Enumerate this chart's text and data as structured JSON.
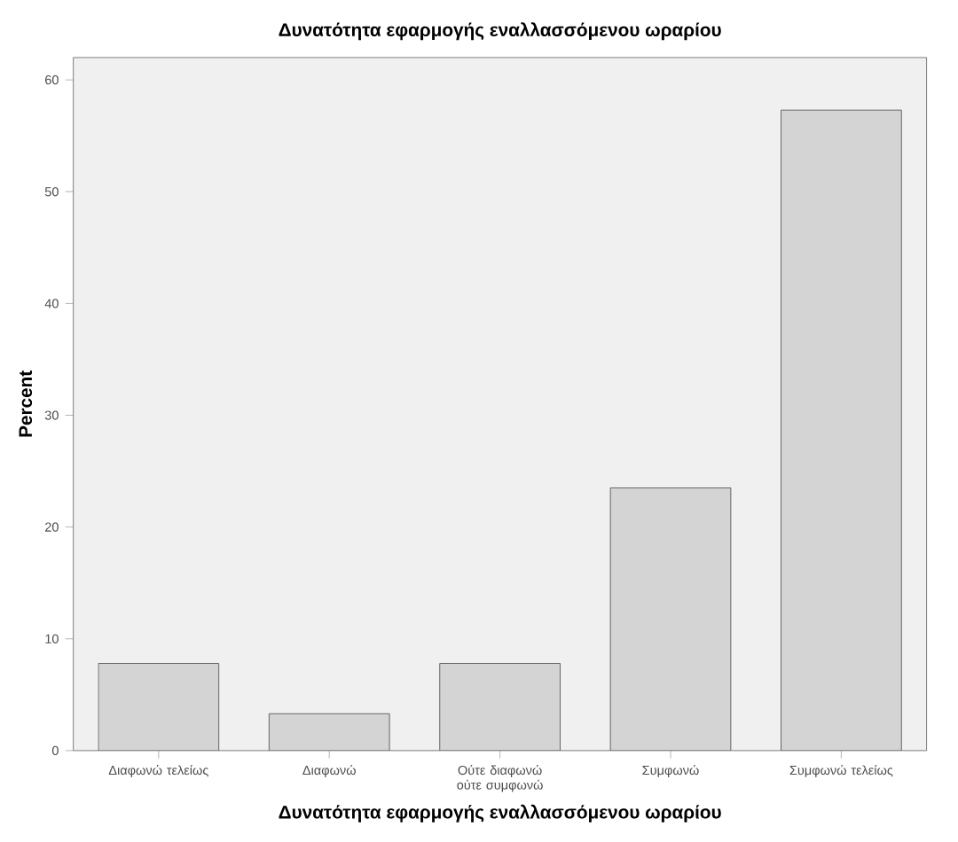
{
  "chart_data": {
    "type": "bar",
    "title": "Δυνατότητα εφαρμογής εναλλασσόμενου ωραρίου",
    "xlabel": "Δυνατότητα εφαρμογής εναλλασσόμενου ωραρίου",
    "ylabel": "Percent",
    "categories": [
      "Διαφωνώ τελείως",
      "Διαφωνώ",
      "Ούτε διαφωνώ ούτε συμφωνώ",
      "Συμφωνώ",
      "Συμφωνώ τελείως"
    ],
    "values": [
      7.8,
      3.3,
      7.8,
      23.5,
      57.3
    ],
    "color": "#d4d4d4",
    "ylim": [
      0,
      62
    ],
    "yticks": [
      0,
      10,
      20,
      30,
      40,
      50,
      60
    ],
    "grid": false
  }
}
